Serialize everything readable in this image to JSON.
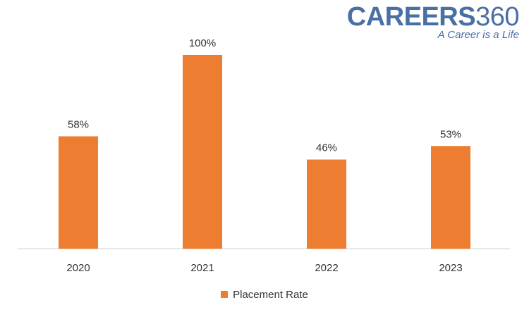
{
  "logo": {
    "name_bold": "CAREERS",
    "name_thin": "360",
    "tagline": "A Career is a Life",
    "color": "#4a6fa5"
  },
  "chart_data": {
    "type": "bar",
    "categories": [
      "2020",
      "2021",
      "2022",
      "2023"
    ],
    "series": [
      {
        "name": "Placement Rate",
        "values": [
          58,
          100,
          46,
          53
        ],
        "color": "#ed7d31"
      }
    ],
    "data_labels": [
      "58%",
      "100%",
      "46%",
      "53%"
    ],
    "title": "",
    "xlabel": "",
    "ylabel": "",
    "ylim": [
      0,
      100
    ],
    "grid": false,
    "legend_position": "bottom"
  }
}
